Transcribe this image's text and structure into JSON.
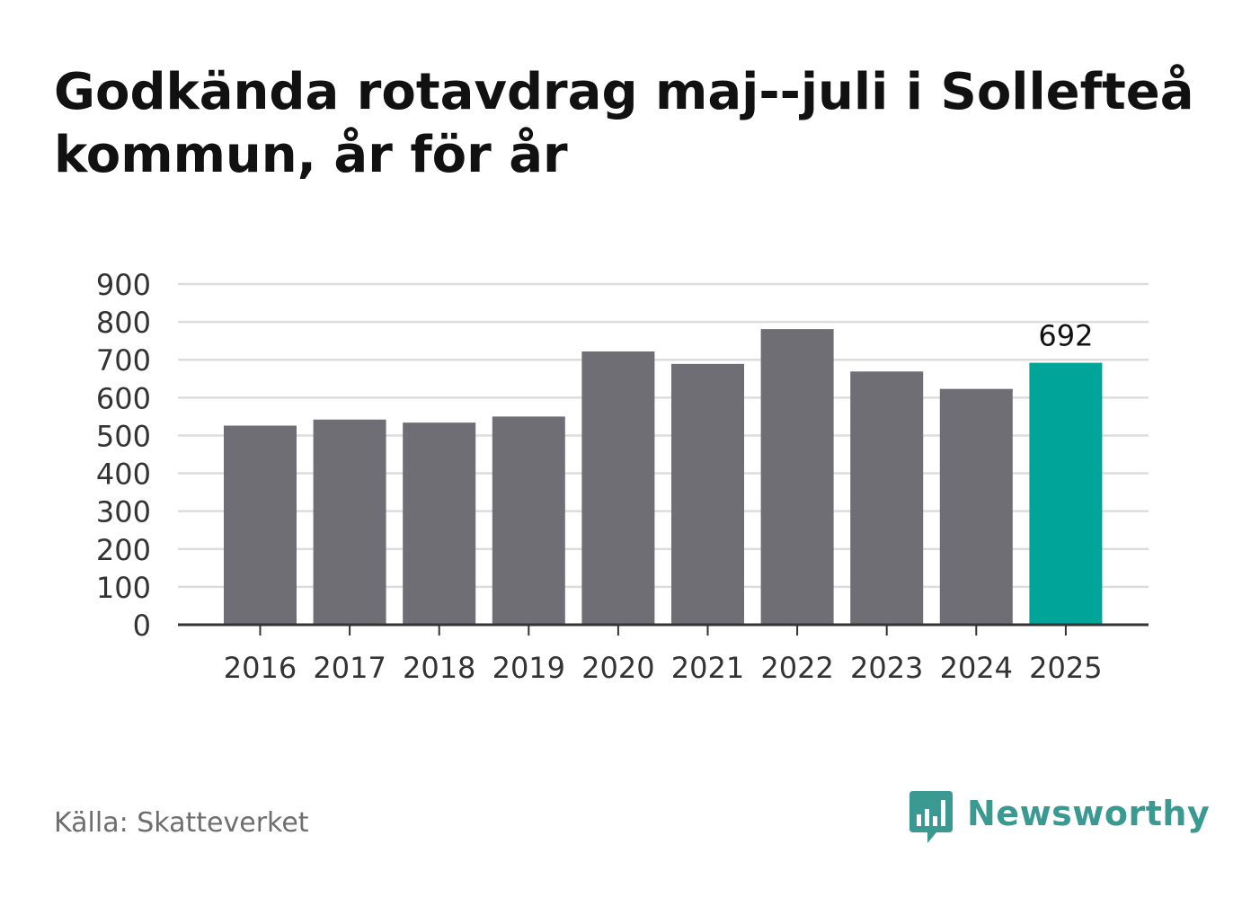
{
  "title": "Godkända rotavdrag maj--juli i Sollefteå kommun, år för år",
  "source": "Källa: Skatteverket",
  "brand": {
    "name": "Newsworthy",
    "logo_icon": "newsworthy-chart-bubble-icon",
    "color": "#3a9a92"
  },
  "colors": {
    "bar": "#6f6e74",
    "highlight": "#00a499",
    "grid": "#dddddd",
    "axis": "#333333",
    "text": "#333333"
  },
  "chart_data": {
    "type": "bar",
    "title": "Godkända rotavdrag maj--juli i Sollefteå kommun, år för år",
    "xlabel": "",
    "ylabel": "",
    "categories": [
      "2016",
      "2017",
      "2018",
      "2019",
      "2020",
      "2021",
      "2022",
      "2023",
      "2024",
      "2025"
    ],
    "values": [
      526,
      542,
      534,
      550,
      722,
      689,
      781,
      669,
      623,
      692
    ],
    "highlight_index": 9,
    "data_labels": [
      {
        "index": 9,
        "text": "692"
      }
    ],
    "ylim": [
      0,
      900
    ],
    "yticks": [
      0,
      100,
      200,
      300,
      400,
      500,
      600,
      700,
      800,
      900
    ],
    "grid": true,
    "legend": "none"
  }
}
